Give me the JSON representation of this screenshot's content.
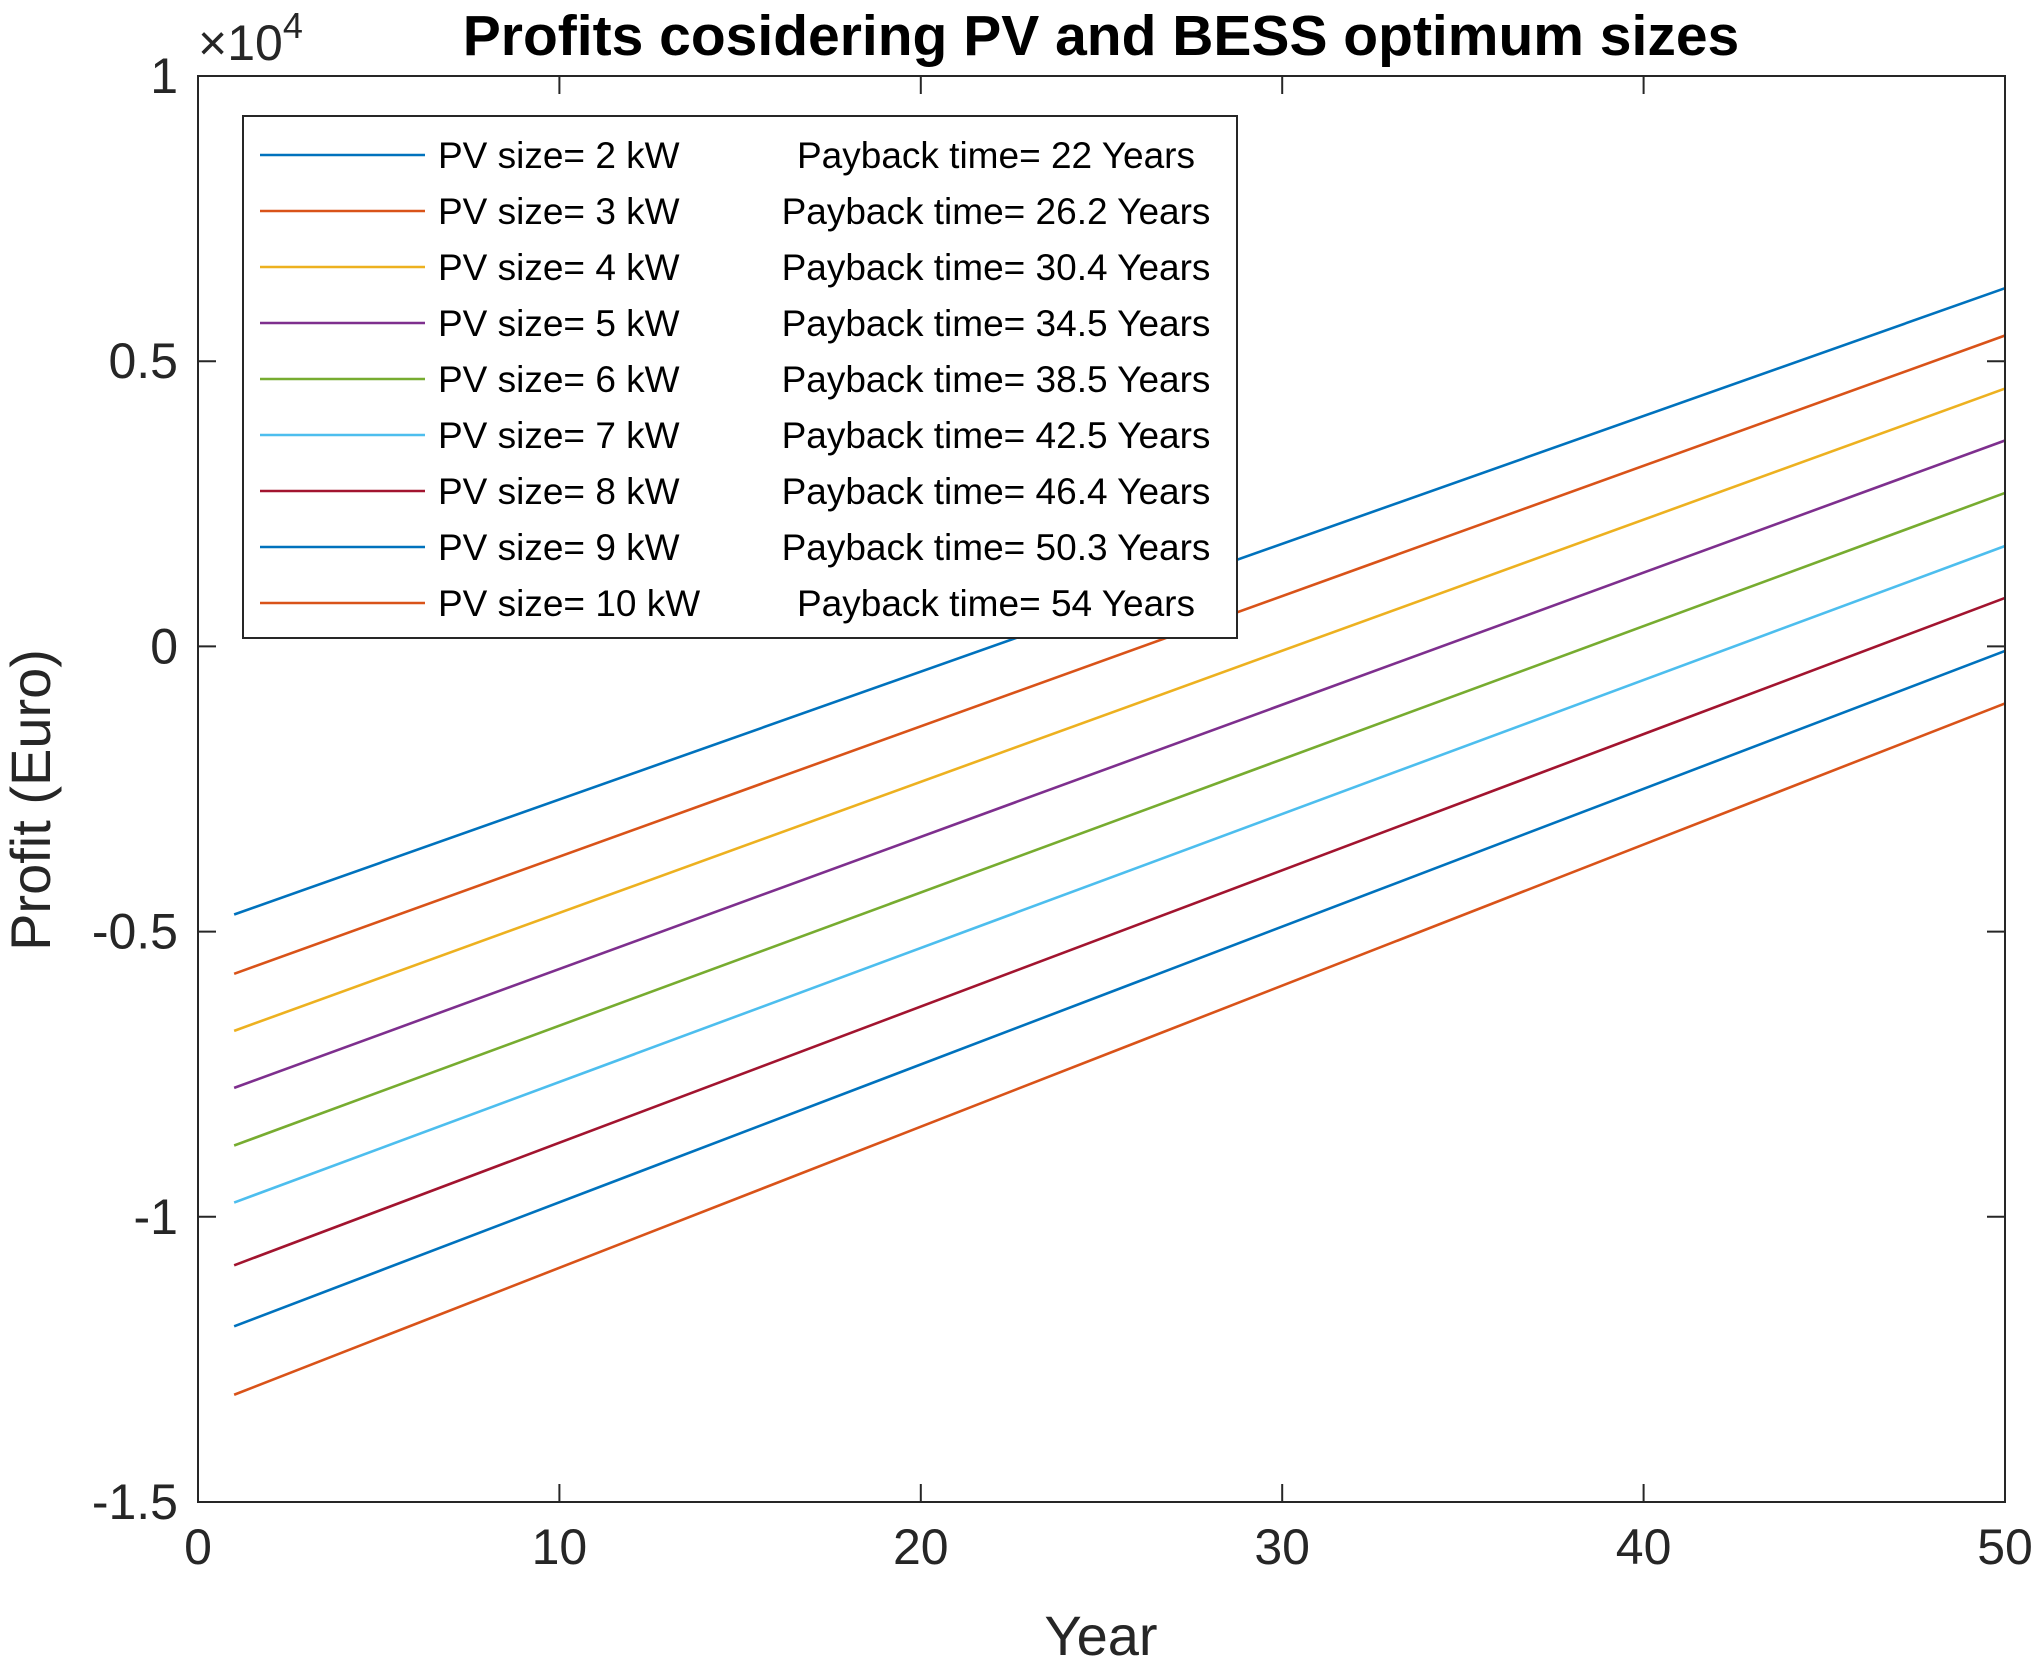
{
  "chart_data": {
    "type": "line",
    "title": "Profits cosidering PV and BESS optimum sizes",
    "xlabel": "Year",
    "ylabel": "Profit (Euro)",
    "y_exponent_label": "×10",
    "y_exponent_power": "4",
    "y_multiplier": 10000,
    "xlim": [
      0,
      50
    ],
    "ylim": [
      -1.5,
      1
    ],
    "xticks": [
      0,
      10,
      20,
      30,
      40,
      50
    ],
    "xtick_labels": [
      "0",
      "10",
      "20",
      "30",
      "40",
      "50"
    ],
    "yticks": [
      -1.5,
      -1,
      -0.5,
      0,
      0.5,
      1
    ],
    "ytick_labels": [
      "-1.5",
      "-1",
      "-0.5",
      "0",
      "0.5",
      "1"
    ],
    "grid": false,
    "legend_position": "top-left",
    "series": [
      {
        "name": "PV size= 2 kW",
        "payback": "Payback time= 22 Years",
        "color": "#0072BD",
        "x": [
          1,
          50
        ],
        "y": [
          -0.47,
          0.628
        ]
      },
      {
        "name": "PV size= 3 kW",
        "payback": "Payback time= 26.2 Years",
        "color": "#D95319",
        "x": [
          1,
          50
        ],
        "y": [
          -0.574,
          0.545
        ]
      },
      {
        "name": "PV size= 4 kW",
        "payback": "Payback time= 30.4 Years",
        "color": "#EDB120",
        "x": [
          1,
          50
        ],
        "y": [
          -0.674,
          0.452
        ]
      },
      {
        "name": "PV size= 5 kW",
        "payback": "Payback time= 34.5 Years",
        "color": "#7E2F8E",
        "x": [
          1,
          50
        ],
        "y": [
          -0.774,
          0.361
        ]
      },
      {
        "name": "PV size= 6 kW",
        "payback": "Payback time= 38.5 Years",
        "color": "#77AC30",
        "x": [
          1,
          50
        ],
        "y": [
          -0.875,
          0.269
        ]
      },
      {
        "name": "PV size= 7 kW",
        "payback": "Payback time= 42.5 Years",
        "color": "#4DBEEE",
        "x": [
          1,
          50
        ],
        "y": [
          -0.975,
          0.176
        ]
      },
      {
        "name": "PV size= 8 kW",
        "payback": "Payback time= 46.4 Years",
        "color": "#A2142F",
        "x": [
          1,
          50
        ],
        "y": [
          -1.085,
          0.085
        ]
      },
      {
        "name": "PV size= 9 kW",
        "payback": "Payback time= 50.3 Years",
        "color": "#0072BD",
        "x": [
          1,
          50
        ],
        "y": [
          -1.192,
          -0.008
        ]
      },
      {
        "name": "PV size= 10 kW",
        "payback": "Payback time= 54 Years",
        "color": "#D95319",
        "x": [
          1,
          50
        ],
        "y": [
          -1.312,
          -0.1
        ]
      }
    ]
  }
}
